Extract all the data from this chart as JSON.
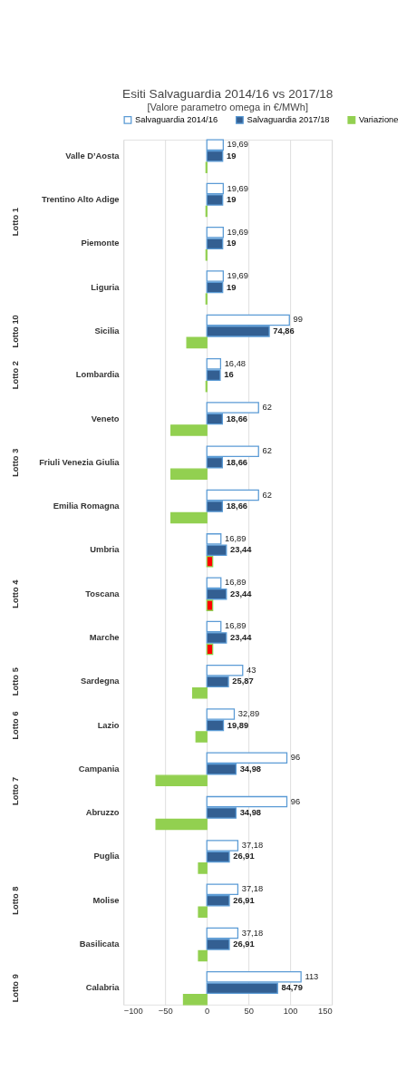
{
  "chart_data": {
    "type": "bar",
    "orientation": "horizontal",
    "title": "Esiti Salvaguardia 2014/16 vs 2017/18",
    "subtitle": "[Valore parametro omega in €/MWh]",
    "categories": [
      "Valle D’Aosta",
      "Trentino Alto Adige",
      "Piemonte",
      "Liguria",
      "Sicilia",
      "Lombardia",
      "Veneto",
      "Friuli Venezia Giulia",
      "Emilia Romagna",
      "Umbria",
      "Toscana",
      "Marche",
      "Sardegna",
      "Lazio",
      "Campania",
      "Abruzzo",
      "Puglia",
      "Molise",
      "Basilicata",
      "Calabria"
    ],
    "series": [
      {
        "name": "Salvaguardia 2014/16",
        "color": "#5b9bd5",
        "values": [
          19.69,
          19.69,
          19.69,
          19.69,
          99,
          16.48,
          62,
          62,
          62,
          16.89,
          16.89,
          16.89,
          43,
          32.89,
          96,
          96,
          37.18,
          37.18,
          37.18,
          113
        ],
        "value_labels": [
          "19,69",
          "19,69",
          "19,69",
          "19,69",
          "99",
          "16,48",
          "62",
          "62",
          "62",
          "16,89",
          "16,89",
          "16,89",
          "43",
          "32,89",
          "96",
          "96",
          "37,18",
          "37,18",
          "37,18",
          "113"
        ]
      },
      {
        "name": "Salvaguardia 2017/18",
        "color": "#335f92",
        "values": [
          19,
          19,
          19,
          19,
          74.86,
          16,
          18.66,
          18.66,
          18.66,
          23.44,
          23.44,
          23.44,
          25.87,
          19.89,
          34.98,
          34.98,
          26.91,
          26.91,
          26.91,
          84.79
        ],
        "value_labels": [
          "19",
          "19",
          "19",
          "19",
          "74,86",
          "16",
          "18,66",
          "18,66",
          "18,66",
          "23,44",
          "23,44",
          "23,44",
          "25,87",
          "19,89",
          "34,98",
          "34,98",
          "26,91",
          "26,91",
          "26,91",
          "84,79"
        ]
      },
      {
        "name": "Variazione",
        "color": "#92d050",
        "values": [
          -1,
          -1,
          -1,
          -1,
          -24,
          -1,
          -43,
          -43,
          -43,
          7,
          7,
          7,
          -17,
          -13,
          -61,
          -61,
          -10,
          -10,
          -10,
          -28
        ],
        "colors": [
          "#92d050",
          "#92d050",
          "#92d050",
          "#92d050",
          "#92d050",
          "#92d050",
          "#92d050",
          "#92d050",
          "#92d050",
          "#ff0000",
          "#ff0000",
          "#ff0000",
          "#92d050",
          "#92d050",
          "#92d050",
          "#92d050",
          "#92d050",
          "#92d050",
          "#92d050",
          "#92d050"
        ]
      }
    ],
    "xlim": [
      -100,
      150
    ],
    "xticks": [
      -100,
      -50,
      0,
      50,
      100,
      150
    ],
    "grid": "x",
    "legend": "top",
    "annotations": [
      "Lotto 1",
      "Lotto 10",
      "Lotto 2",
      "Lotto 3",
      "Lotto 4",
      "Lotto 5",
      "Lotto 6",
      "Lotto 7",
      "Lotto 8",
      "Lotto 9"
    ]
  }
}
